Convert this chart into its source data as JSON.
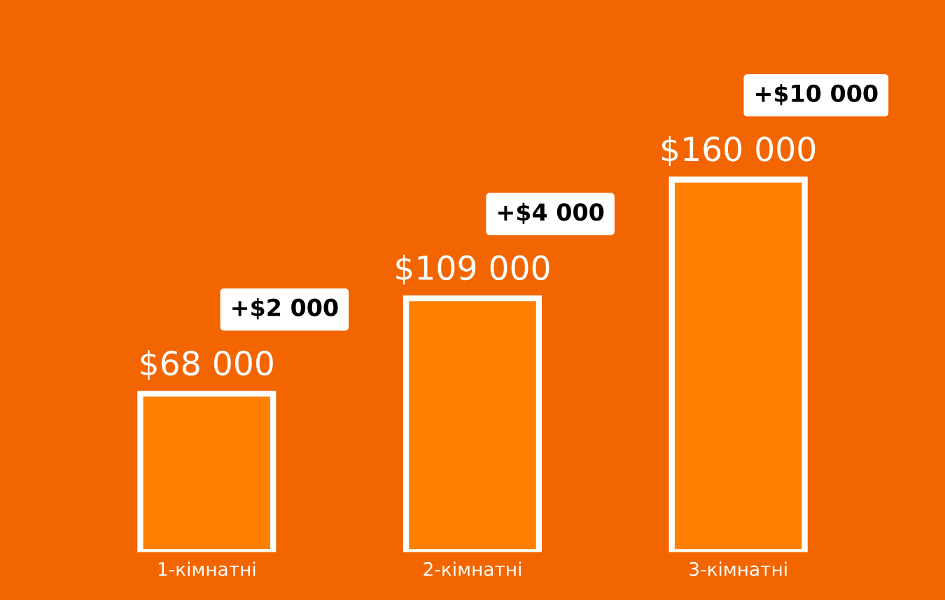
{
  "chart_data": {
    "type": "bar",
    "categories": [
      "1-кімнатні",
      "2-кімнатні",
      "3-кімнатні"
    ],
    "values": [
      68000,
      109000,
      160000
    ],
    "color": "#ff7f00",
    "value_labels": [
      "$68 000",
      "$109 000",
      "$160 000"
    ],
    "annotations": [
      "+$2 000",
      "+$4 000",
      "+$10 000"
    ],
    "grid": false,
    "legend": false
  }
}
